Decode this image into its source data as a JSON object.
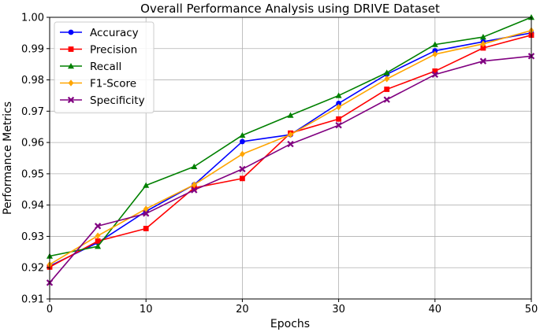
{
  "chart_data": {
    "type": "line",
    "title": "Overall Performance Analysis using DRIVE Dataset",
    "xlabel": "Epochs",
    "ylabel": "Performance Metrics",
    "xlim": [
      0,
      50
    ],
    "ylim": [
      0.91,
      1.0
    ],
    "xticks": [
      0,
      10,
      20,
      30,
      40,
      50
    ],
    "xtick_labels": [
      "0",
      "10",
      "20",
      "30",
      "40",
      "50"
    ],
    "yticks": [
      0.91,
      0.92,
      0.93,
      0.94,
      0.95,
      0.96,
      0.97,
      0.98,
      0.99,
      1.0
    ],
    "ytick_labels": [
      "0.91",
      "0.92",
      "0.93",
      "0.94",
      "0.95",
      "0.96",
      "0.97",
      "0.98",
      "0.99",
      "1.00"
    ],
    "grid": true,
    "legend_position": "top-left",
    "x": [
      0,
      5,
      10,
      15,
      20,
      25,
      30,
      35,
      40,
      45,
      50
    ],
    "series": [
      {
        "name": "Accuracy",
        "color": "#0000ff",
        "marker": "circle",
        "values": [
          0.9205,
          0.928,
          0.938,
          0.9465,
          0.9603,
          0.9625,
          0.9725,
          0.9818,
          0.9893,
          0.9922,
          0.995
        ]
      },
      {
        "name": "Precision",
        "color": "#ff0000",
        "marker": "square",
        "values": [
          0.9202,
          0.9285,
          0.9325,
          0.9455,
          0.9485,
          0.963,
          0.9675,
          0.977,
          0.9828,
          0.9902,
          0.9943
        ]
      },
      {
        "name": "Recall",
        "color": "#008000",
        "marker": "triangle",
        "values": [
          0.9237,
          0.9268,
          0.9463,
          0.9523,
          0.9623,
          0.9687,
          0.975,
          0.9823,
          0.9913,
          0.9937,
          1.0
        ]
      },
      {
        "name": "F1-Score",
        "color": "#ffa500",
        "marker": "diamond",
        "values": [
          0.921,
          0.9302,
          0.9388,
          0.9465,
          0.9563,
          0.9625,
          0.9713,
          0.9803,
          0.9882,
          0.9915,
          0.9958
        ]
      },
      {
        "name": "Specificity",
        "color": "#800080",
        "marker": "x",
        "values": [
          0.9152,
          0.9333,
          0.9373,
          0.9448,
          0.9515,
          0.9595,
          0.9655,
          0.9737,
          0.9817,
          0.986,
          0.9876
        ]
      }
    ]
  }
}
